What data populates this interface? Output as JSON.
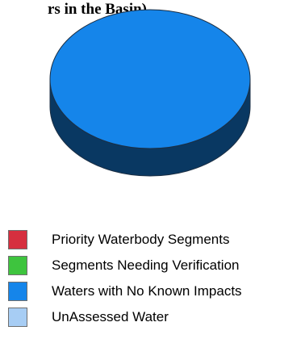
{
  "chart_data": {
    "type": "pie",
    "title": "rs in the Basin)",
    "categories": [
      "Priority Waterbody Segments",
      "Segments Needing Verification",
      "Waters with No Known Impacts",
      "UnAssessed Water"
    ],
    "values": [
      0,
      0,
      100,
      0
    ],
    "colors": [
      "#d62f3f",
      "#3ec43e",
      "#1585ea",
      "#a7cdf4"
    ],
    "legend_position": "bottom-left",
    "style": "3d"
  }
}
